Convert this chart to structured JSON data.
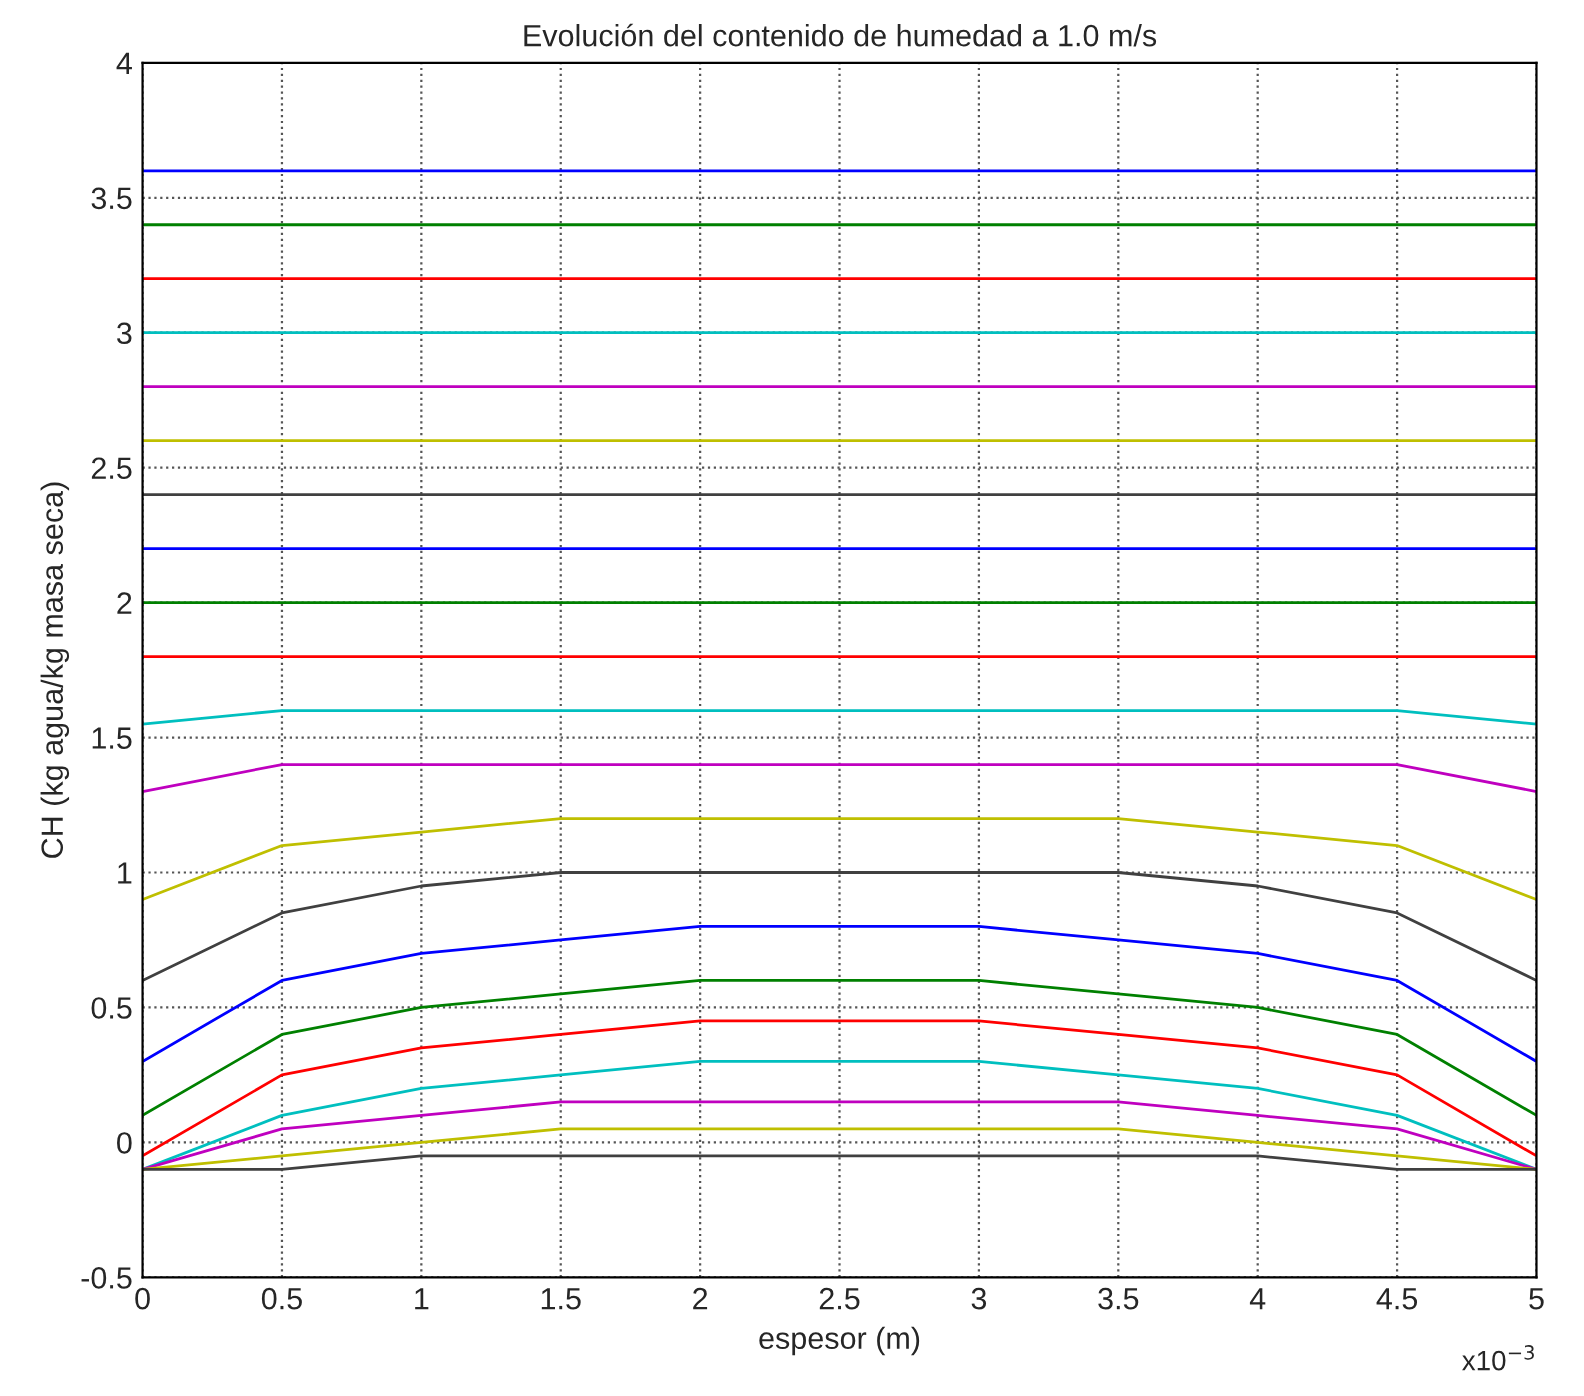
{
  "chart_data": {
    "type": "line",
    "title": "Evolución del contenido de humedad a 1.0 m/s",
    "xlabel": "espesor (m)",
    "ylabel": "CH (kg agua/kg masa seca)",
    "x": [
      0,
      0.5,
      1,
      1.5,
      2,
      2.5,
      3,
      3.5,
      4,
      4.5,
      5
    ],
    "series": [
      {
        "color": "#0000ff",
        "values": [
          3.6,
          3.6,
          3.6,
          3.6,
          3.6,
          3.6,
          3.6,
          3.6,
          3.6,
          3.6,
          3.6
        ]
      },
      {
        "color": "#008000",
        "values": [
          3.4,
          3.4,
          3.4,
          3.4,
          3.4,
          3.4,
          3.4,
          3.4,
          3.4,
          3.4,
          3.4
        ]
      },
      {
        "color": "#ff0000",
        "values": [
          3.2,
          3.2,
          3.2,
          3.2,
          3.2,
          3.2,
          3.2,
          3.2,
          3.2,
          3.2,
          3.2
        ]
      },
      {
        "color": "#00bfbf",
        "values": [
          3.0,
          3.0,
          3.0,
          3.0,
          3.0,
          3.0,
          3.0,
          3.0,
          3.0,
          3.0,
          3.0
        ]
      },
      {
        "color": "#bf00bf",
        "values": [
          2.8,
          2.8,
          2.8,
          2.8,
          2.8,
          2.8,
          2.8,
          2.8,
          2.8,
          2.8,
          2.8
        ]
      },
      {
        "color": "#bfbf00",
        "values": [
          2.6,
          2.6,
          2.6,
          2.6,
          2.6,
          2.6,
          2.6,
          2.6,
          2.6,
          2.6,
          2.6
        ]
      },
      {
        "color": "#404040",
        "values": [
          2.4,
          2.4,
          2.4,
          2.4,
          2.4,
          2.4,
          2.4,
          2.4,
          2.4,
          2.4,
          2.4
        ]
      },
      {
        "color": "#0000ff",
        "values": [
          2.2,
          2.2,
          2.2,
          2.2,
          2.2,
          2.2,
          2.2,
          2.2,
          2.2,
          2.2,
          2.2
        ]
      },
      {
        "color": "#008000",
        "values": [
          2.0,
          2.0,
          2.0,
          2.0,
          2.0,
          2.0,
          2.0,
          2.0,
          2.0,
          2.0,
          2.0
        ]
      },
      {
        "color": "#ff0000",
        "values": [
          1.8,
          1.8,
          1.8,
          1.8,
          1.8,
          1.8,
          1.8,
          1.8,
          1.8,
          1.8,
          1.8
        ]
      },
      {
        "color": "#00bfbf",
        "values": [
          1.55,
          1.6,
          1.6,
          1.6,
          1.6,
          1.6,
          1.6,
          1.6,
          1.6,
          1.6,
          1.55
        ]
      },
      {
        "color": "#bf00bf",
        "values": [
          1.3,
          1.4,
          1.4,
          1.4,
          1.4,
          1.4,
          1.4,
          1.4,
          1.4,
          1.4,
          1.3
        ]
      },
      {
        "color": "#bfbf00",
        "values": [
          0.9,
          1.1,
          1.15,
          1.2,
          1.2,
          1.2,
          1.2,
          1.2,
          1.15,
          1.1,
          0.9
        ]
      },
      {
        "color": "#404040",
        "values": [
          0.6,
          0.85,
          0.95,
          1.0,
          1.0,
          1.0,
          1.0,
          1.0,
          0.95,
          0.85,
          0.6
        ]
      },
      {
        "color": "#0000ff",
        "values": [
          0.3,
          0.6,
          0.7,
          0.75,
          0.8,
          0.8,
          0.8,
          0.75,
          0.7,
          0.6,
          0.3
        ]
      },
      {
        "color": "#008000",
        "values": [
          0.1,
          0.4,
          0.5,
          0.55,
          0.6,
          0.6,
          0.6,
          0.55,
          0.5,
          0.4,
          0.1
        ]
      },
      {
        "color": "#ff0000",
        "values": [
          -0.05,
          0.25,
          0.35,
          0.4,
          0.45,
          0.45,
          0.45,
          0.4,
          0.35,
          0.25,
          -0.05
        ]
      },
      {
        "color": "#00bfbf",
        "values": [
          -0.1,
          0.1,
          0.2,
          0.25,
          0.3,
          0.3,
          0.3,
          0.25,
          0.2,
          0.1,
          -0.1
        ]
      },
      {
        "color": "#bf00bf",
        "values": [
          -0.1,
          0.05,
          0.1,
          0.15,
          0.15,
          0.15,
          0.15,
          0.15,
          0.1,
          0.05,
          -0.1
        ]
      },
      {
        "color": "#bfbf00",
        "values": [
          -0.1,
          -0.05,
          0.0,
          0.05,
          0.05,
          0.05,
          0.05,
          0.05,
          0.0,
          -0.05,
          -0.1
        ]
      },
      {
        "color": "#404040",
        "values": [
          -0.1,
          -0.1,
          -0.05,
          -0.05,
          -0.05,
          -0.05,
          -0.05,
          -0.05,
          -0.05,
          -0.1,
          -0.1
        ]
      }
    ],
    "xlim": [
      0,
      5
    ],
    "xticks": [
      0,
      0.5,
      1,
      1.5,
      2,
      2.5,
      3,
      3.5,
      4,
      4.5,
      5
    ],
    "ylim": [
      -0.5,
      4
    ],
    "yticks": [
      -0.5,
      0,
      0.5,
      1,
      1.5,
      2,
      2.5,
      3,
      3.5,
      4
    ],
    "grid": true,
    "legend": false,
    "marker": "none",
    "line_style": "solid",
    "annotations": [
      "x10$^{−3}$"
    ]
  }
}
